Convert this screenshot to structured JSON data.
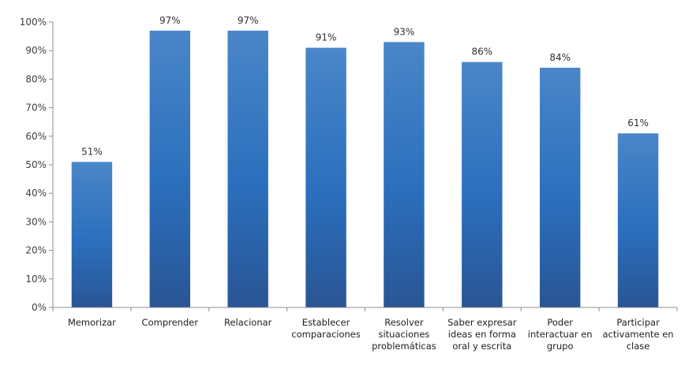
{
  "chart_data": {
    "type": "bar",
    "categories": [
      [
        "Memorizar"
      ],
      [
        "Comprender"
      ],
      [
        "Relacionar"
      ],
      [
        "Establecer",
        "comparaciones"
      ],
      [
        "Resolver",
        "situaciones",
        "problemáticas"
      ],
      [
        "Saber expresar",
        "ideas en forma",
        "oral y escrita"
      ],
      [
        "Poder",
        "interactuar en",
        "grupo"
      ],
      [
        "Participar",
        "activamente en",
        "clase"
      ]
    ],
    "values": [
      51,
      97,
      97,
      91,
      93,
      86,
      84,
      61
    ],
    "data_labels": [
      "51%",
      "97%",
      "97%",
      "91%",
      "93%",
      "86%",
      "84%",
      "61%"
    ],
    "ylim": [
      0,
      100
    ],
    "yticks": [
      0,
      10,
      20,
      30,
      40,
      50,
      60,
      70,
      80,
      90,
      100
    ],
    "ytick_labels": [
      "0%",
      "10%",
      "20%",
      "30%",
      "40%",
      "50%",
      "60%",
      "70%",
      "80%",
      "90%",
      "100%"
    ],
    "grid": false,
    "legend": "none",
    "colors": {
      "bar_top": "#4a86c8",
      "bar_mid": "#2b6fbd",
      "bar_bottom": "#2a5595",
      "axis": "#8c8c8c"
    }
  }
}
